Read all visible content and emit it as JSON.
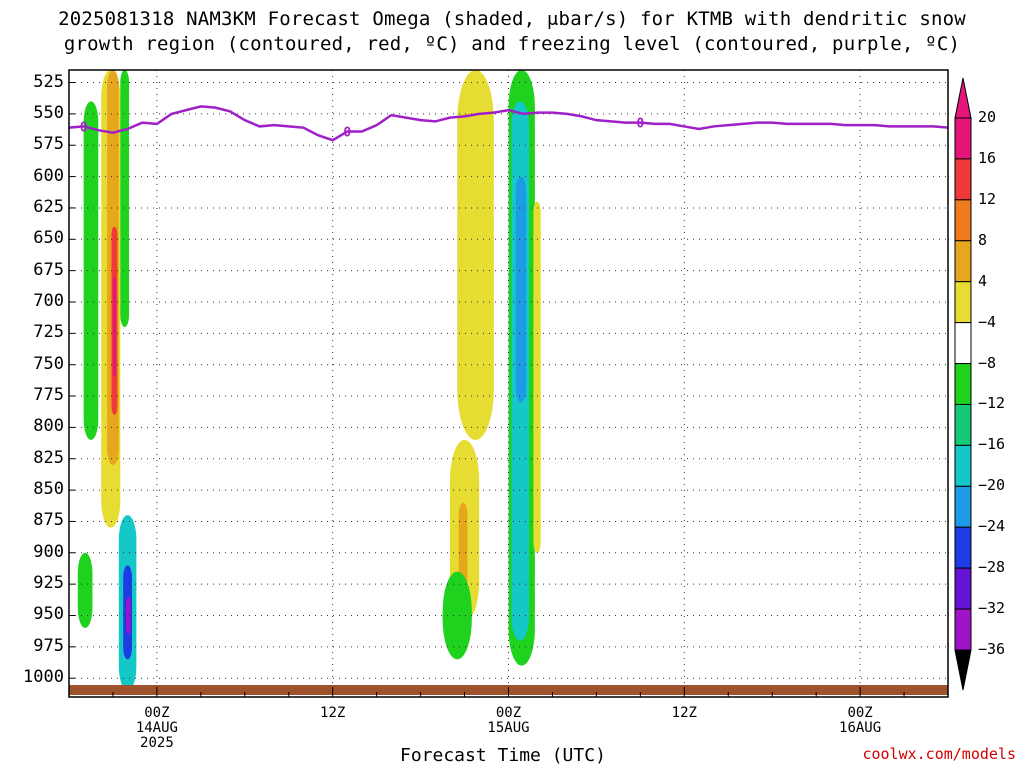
{
  "title": {
    "line1": "2025081318 NAM3KM Forecast Omega (shaded, μbar/s) for KTMB with dendritic snow",
    "line2": "growth region (contoured, red, ºC) and freezing level (contoured, purple, ºC)"
  },
  "credit": "coolwx.com/models",
  "chart_data": {
    "type": "heatmap",
    "title": "2025081318 NAM3KM Forecast Omega (shaded, μbar/s) for KTMB with dendritic snow growth region (contoured, red, ºC) and freezing level (contoured, purple, ºC)",
    "xlabel": "Forecast Time (UTC)",
    "ylabel": "",
    "x_range_hours_since_2025-08-13T18Z": [
      0,
      60
    ],
    "y_axis": {
      "type": "pressure (hPa)",
      "inverted": true,
      "range": [
        1015,
        515
      ]
    },
    "y_ticks": [
      525,
      550,
      575,
      600,
      625,
      650,
      675,
      700,
      725,
      750,
      775,
      800,
      825,
      850,
      875,
      900,
      925,
      950,
      975,
      1000
    ],
    "x_ticks": [
      {
        "label": [
          "00Z",
          "14AUG",
          "2025"
        ]
      },
      {
        "label": [
          "12Z"
        ]
      },
      {
        "label": [
          "00Z",
          "15AUG"
        ]
      },
      {
        "label": [
          "12Z"
        ]
      },
      {
        "label": [
          "00Z",
          "16AUG"
        ]
      }
    ],
    "grid": true,
    "colorbar": {
      "labels": [
        "20",
        "16",
        "12",
        "8",
        "4",
        "−4",
        "−8",
        "−12",
        "−16",
        "−20",
        "−24",
        "−28",
        "−32",
        "−36"
      ],
      "colors": [
        "#e6157a",
        "#f03a3a",
        "#ef7b1e",
        "#e6a61e",
        "#e6dc32",
        "#ffffff",
        "#1ed21e",
        "#14c878",
        "#14c8c8",
        "#1e9be6",
        "#1e3ce6",
        "#6414d2",
        "#a014c8",
        "#a0a0a0"
      ]
    },
    "freezing_level": {
      "label": "0",
      "color": "#a020c8",
      "hours": [
        0,
        1,
        2,
        3,
        4,
        5,
        6,
        7,
        8,
        9,
        10,
        11,
        12,
        13,
        14,
        15,
        16,
        17,
        18,
        19,
        20,
        21,
        22,
        23,
        24,
        25,
        26,
        27,
        28,
        29,
        30,
        31,
        32,
        33,
        34,
        35,
        36,
        37,
        38,
        39,
        40,
        41,
        42,
        43,
        44,
        45,
        46,
        47,
        48,
        49,
        50,
        51,
        52,
        53,
        54,
        55,
        56,
        57,
        58,
        59,
        60
      ],
      "pressure": [
        561,
        560,
        563,
        565,
        562,
        557,
        558,
        550,
        547,
        544,
        545,
        548,
        555,
        560,
        559,
        560,
        561,
        567,
        571,
        564,
        564,
        559,
        551,
        553,
        555,
        556,
        553,
        552,
        550,
        549,
        547,
        550,
        549,
        549,
        550,
        552,
        555,
        556,
        557,
        557,
        558,
        558,
        560,
        562,
        560,
        559,
        558,
        557,
        557,
        558,
        558,
        558,
        558,
        559,
        559,
        559,
        560,
        560,
        560,
        560,
        561
      ]
    },
    "omega_regions": [
      {
        "value": -6,
        "hours": [
          1.0,
          2.0
        ],
        "pressure": [
          540,
          810
        ],
        "note": "green band west of first column"
      },
      {
        "value": 4,
        "hours": [
          2.2,
          3.5
        ],
        "pressure": [
          515,
          880
        ]
      },
      {
        "value": 8,
        "hours": [
          2.6,
          3.4
        ],
        "pressure": [
          515,
          830
        ]
      },
      {
        "value": 16,
        "hours": [
          2.9,
          3.3
        ],
        "pressure": [
          640,
          790
        ]
      },
      {
        "value": 20,
        "hours": [
          3.0,
          3.2
        ],
        "pressure": [
          680,
          760
        ]
      },
      {
        "value": -6,
        "hours": [
          3.5,
          4.1
        ],
        "pressure": [
          515,
          720
        ]
      },
      {
        "value": -6,
        "hours": [
          0.6,
          1.6
        ],
        "pressure": [
          900,
          960
        ]
      },
      {
        "value": -14,
        "hours": [
          3.4,
          4.6
        ],
        "pressure": [
          870,
          1010
        ]
      },
      {
        "value": -22,
        "hours": [
          3.7,
          4.3
        ],
        "pressure": [
          910,
          985
        ]
      },
      {
        "value": -30,
        "hours": [
          3.9,
          4.2
        ],
        "pressure": [
          935,
          965
        ]
      },
      {
        "value": 6,
        "hours": [
          26.5,
          29.0
        ],
        "pressure": [
          515,
          810
        ]
      },
      {
        "value": 6,
        "hours": [
          26.0,
          28.0
        ],
        "pressure": [
          810,
          955
        ]
      },
      {
        "value": 10,
        "hours": [
          26.6,
          27.2
        ],
        "pressure": [
          860,
          930
        ]
      },
      {
        "value": -6,
        "hours": [
          25.5,
          27.5
        ],
        "pressure": [
          915,
          985
        ]
      },
      {
        "value": -6,
        "hours": [
          30.0,
          31.8
        ],
        "pressure": [
          515,
          990
        ]
      },
      {
        "value": -12,
        "hours": [
          30.2,
          31.4
        ],
        "pressure": [
          540,
          970
        ]
      },
      {
        "value": -18,
        "hours": [
          30.5,
          31.2
        ],
        "pressure": [
          600,
          780
        ]
      },
      {
        "value": 4,
        "hours": [
          31.7,
          32.2
        ],
        "pressure": [
          620,
          900
        ]
      }
    ]
  }
}
